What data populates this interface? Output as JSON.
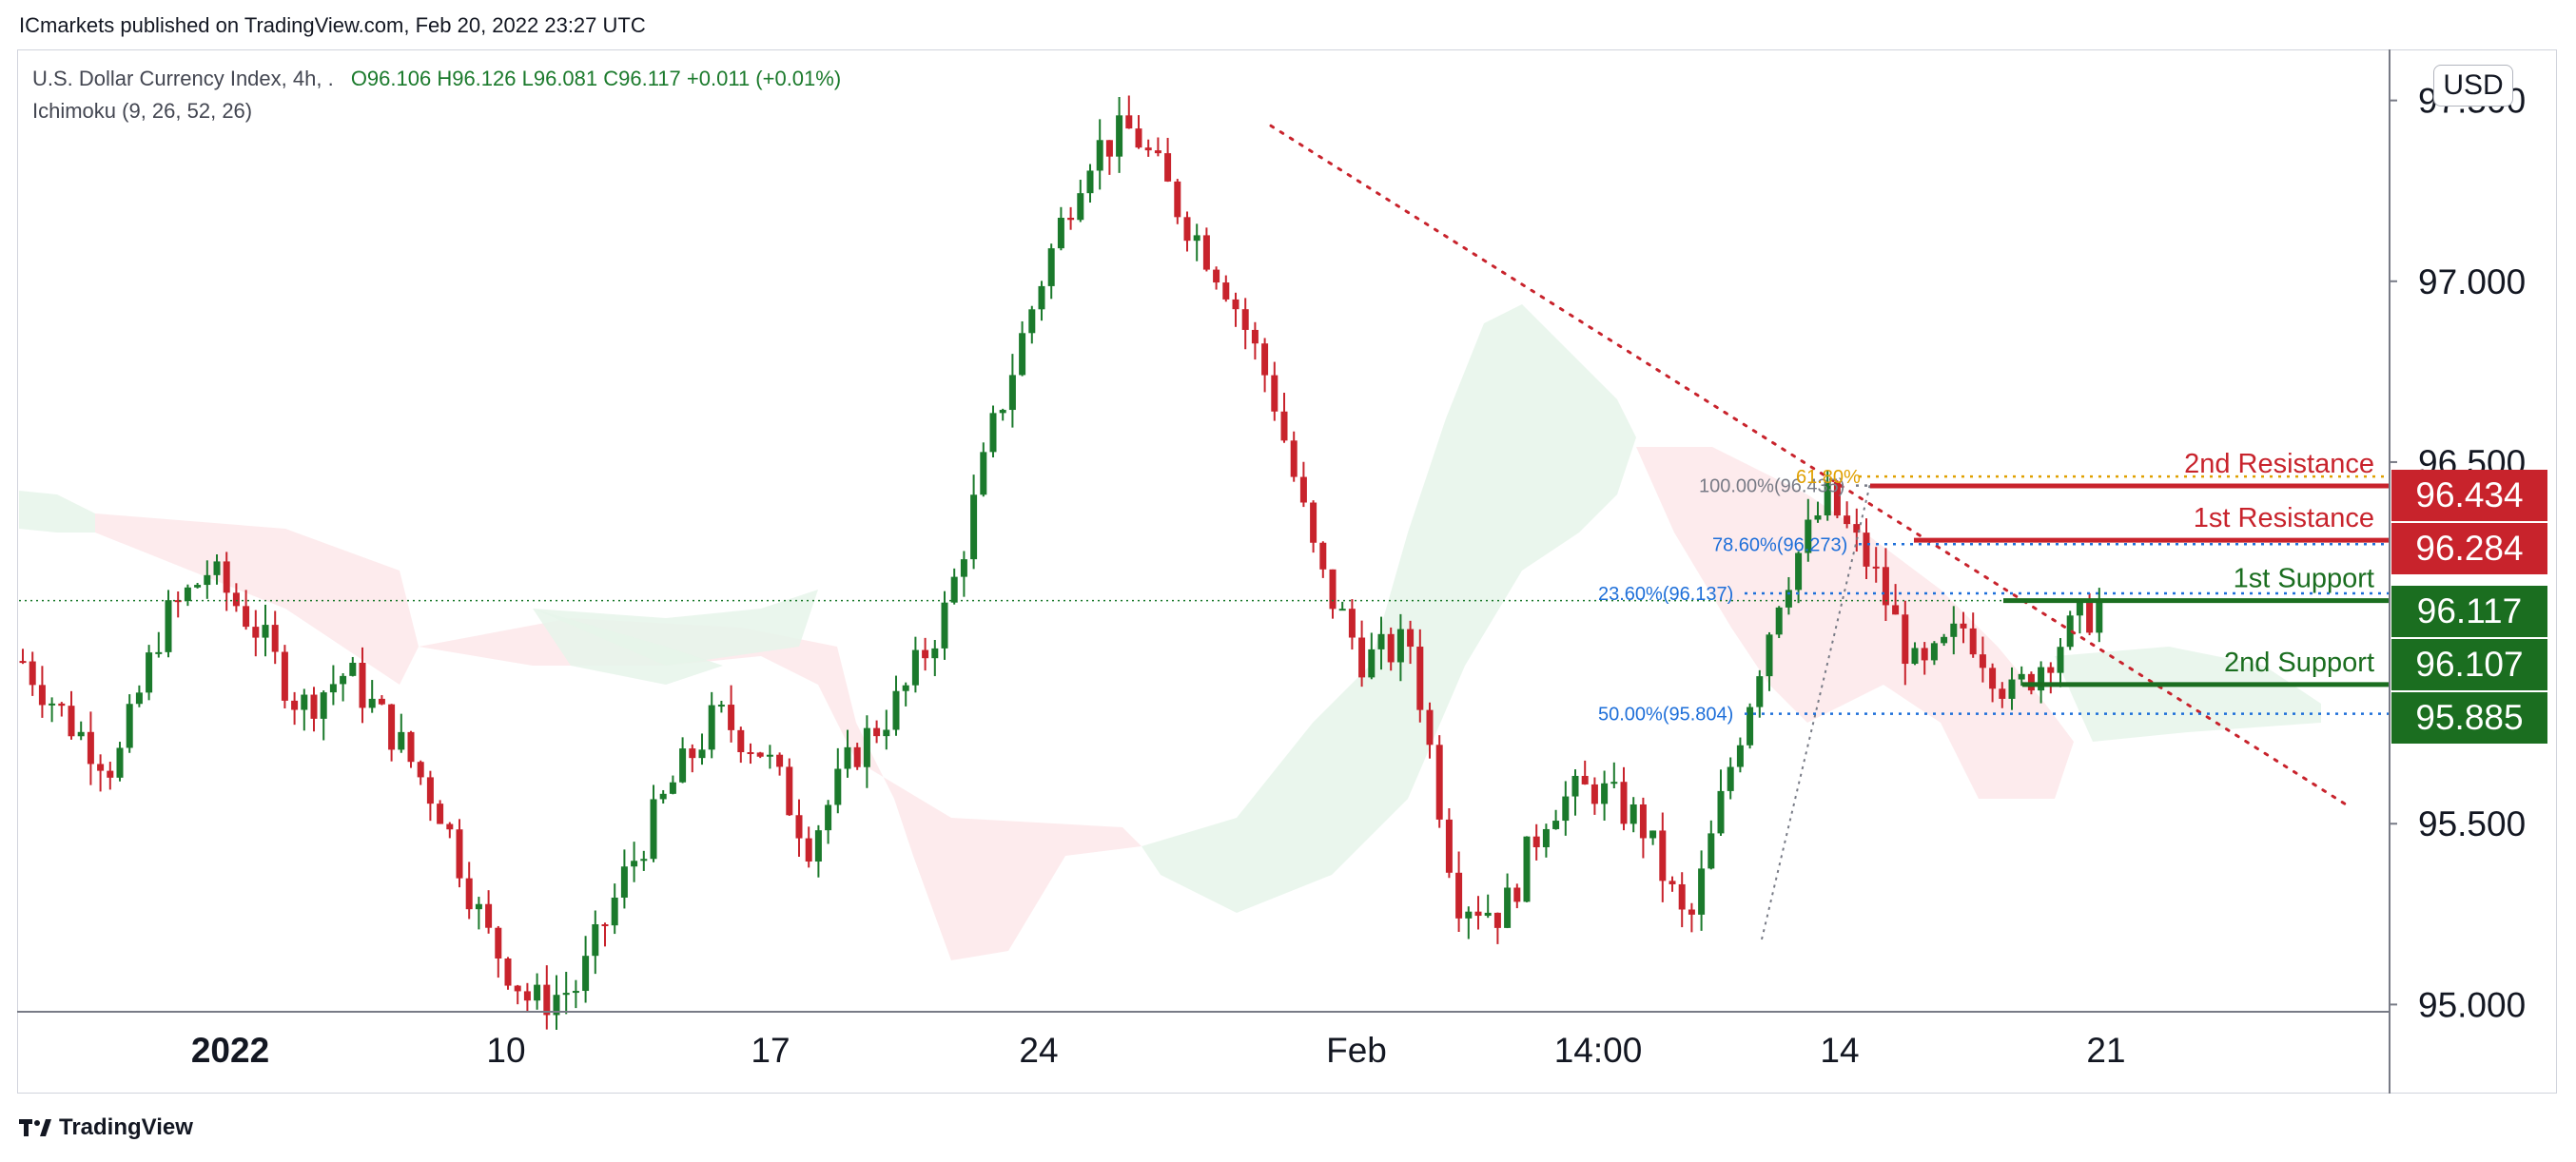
{
  "header": {
    "published": "ICmarkets published on TradingView.com, Feb 20, 2022 23:27 UTC"
  },
  "legend": {
    "symbol": "U.S. Dollar Currency Index, 4h, .",
    "ohlc": "O96.106  H96.126  L96.081  C96.117  +0.011 (+0.01%)",
    "indicator": "Ichimoku (9, 26, 52, 26)"
  },
  "currency_button": "USD",
  "footer": {
    "brand": "TradingView"
  },
  "colors": {
    "up": "#1b7a2c",
    "down": "#c8232c",
    "resistance": "#c8232c",
    "support": "#1b6e20",
    "fib": "#1e6fd9",
    "cloud_bull": "#e6f4ea",
    "cloud_bear": "#fde8ea"
  },
  "chart_data": {
    "type": "candlestick",
    "timeframe": "4h",
    "title": "",
    "xlabel": "",
    "ylabel": "",
    "ylim": [
      95.0,
      97.6
    ],
    "y_ticks": [
      "97.500",
      "97.000",
      "96.500",
      "95.500",
      "95.000"
    ],
    "x_ticks": [
      "2022",
      "10",
      "17",
      "24",
      "Feb",
      "14:00",
      "14",
      "21"
    ],
    "last_price": 96.117,
    "price_path": [
      [
        "2022",
        95.95
      ],
      [
        "2022",
        95.78
      ],
      [
        "2022",
        95.65
      ],
      [
        "mid",
        96.05
      ],
      [
        "mid",
        96.2
      ],
      [
        "10",
        96.05
      ],
      [
        "10",
        95.82
      ],
      [
        "10",
        95.92
      ],
      [
        "10",
        95.75
      ],
      [
        "10",
        95.55
      ],
      [
        "10",
        95.2
      ],
      [
        "10",
        95.0
      ],
      [
        "17",
        95.05
      ],
      [
        "17",
        95.35
      ],
      [
        "17",
        95.6
      ],
      [
        "24",
        95.8
      ],
      [
        "24",
        95.7
      ],
      [
        "24",
        95.45
      ],
      [
        "24",
        95.7
      ],
      [
        "24",
        95.85
      ],
      [
        "24",
        96.1
      ],
      [
        "24",
        96.6
      ],
      [
        "24",
        97.0
      ],
      [
        "24",
        97.35
      ],
      [
        "top",
        97.42
      ],
      [
        "top",
        97.2
      ],
      [
        "Feb",
        97.0
      ],
      [
        "Feb",
        96.7
      ],
      [
        "Feb",
        96.2
      ],
      [
        "Feb",
        95.95
      ],
      [
        "Feb",
        96.0
      ],
      [
        "Feb",
        95.3
      ],
      [
        "14:00",
        95.25
      ],
      [
        "14:00",
        95.55
      ],
      [
        "14:00",
        95.6
      ],
      [
        "14:00",
        95.5
      ],
      [
        "14:00",
        95.2
      ],
      [
        "14",
        95.7
      ],
      [
        "14",
        96.15
      ],
      [
        "14",
        96.4
      ],
      [
        "14",
        96.2
      ],
      [
        "21",
        95.9
      ],
      [
        "21",
        96.05
      ],
      [
        "21",
        95.85
      ],
      [
        "21",
        96.0
      ],
      [
        "21",
        96.117
      ]
    ],
    "fib_levels": [
      {
        "label": "100.00%(96.435)",
        "value": 96.435
      },
      {
        "label": "78.60%(96.273)",
        "value": 96.273
      },
      {
        "label": "61.80%",
        "value": 96.46
      },
      {
        "label": "23.60%(96.137)",
        "value": 96.137
      },
      {
        "label": "50.00%(95.804)",
        "value": 95.804
      }
    ],
    "levels": [
      {
        "name": "2nd Resistance",
        "value": 96.434,
        "kind": "resistance"
      },
      {
        "name": "1st Resistance",
        "value": 96.284,
        "kind": "resistance"
      },
      {
        "name": "1st Support",
        "value": 96.117,
        "kind": "support"
      },
      {
        "name": "2nd Support",
        "value": 95.885,
        "kind": "support"
      }
    ],
    "price_labels": [
      "96.434",
      "96.284",
      "96.117",
      "96.107",
      "95.885"
    ],
    "trendline": {
      "from": 97.43,
      "to": 95.55
    }
  }
}
